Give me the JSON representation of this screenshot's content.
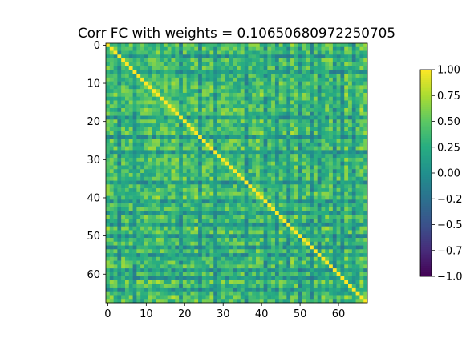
{
  "chart_data": {
    "type": "heatmap",
    "title": "Corr FC with weights = 0.10650680972250705",
    "n": 68,
    "x_ticks": [
      0,
      10,
      20,
      30,
      40,
      50,
      60
    ],
    "y_ticks": [
      0,
      10,
      20,
      30,
      40,
      50,
      60
    ],
    "colorbar": {
      "colormap": "viridis",
      "vmin": -1.0,
      "vmax": 1.0,
      "ticks": [
        1.0,
        0.75,
        0.5,
        0.25,
        0.0,
        -0.25,
        -0.5,
        -0.75,
        -1.0
      ],
      "tick_labels": [
        "1.00",
        "0.75",
        "0.50",
        "0.25",
        "0.00",
        "−0.2",
        "−0.5",
        "−0.7",
        "−1.0"
      ]
    },
    "diagonal_value": 1.0,
    "off_diagonal_mean": 0.3,
    "low_correlation_nodes": [
      3,
      7,
      19,
      24,
      28,
      36,
      41,
      44,
      47,
      50,
      53,
      55,
      59,
      61,
      64
    ]
  }
}
